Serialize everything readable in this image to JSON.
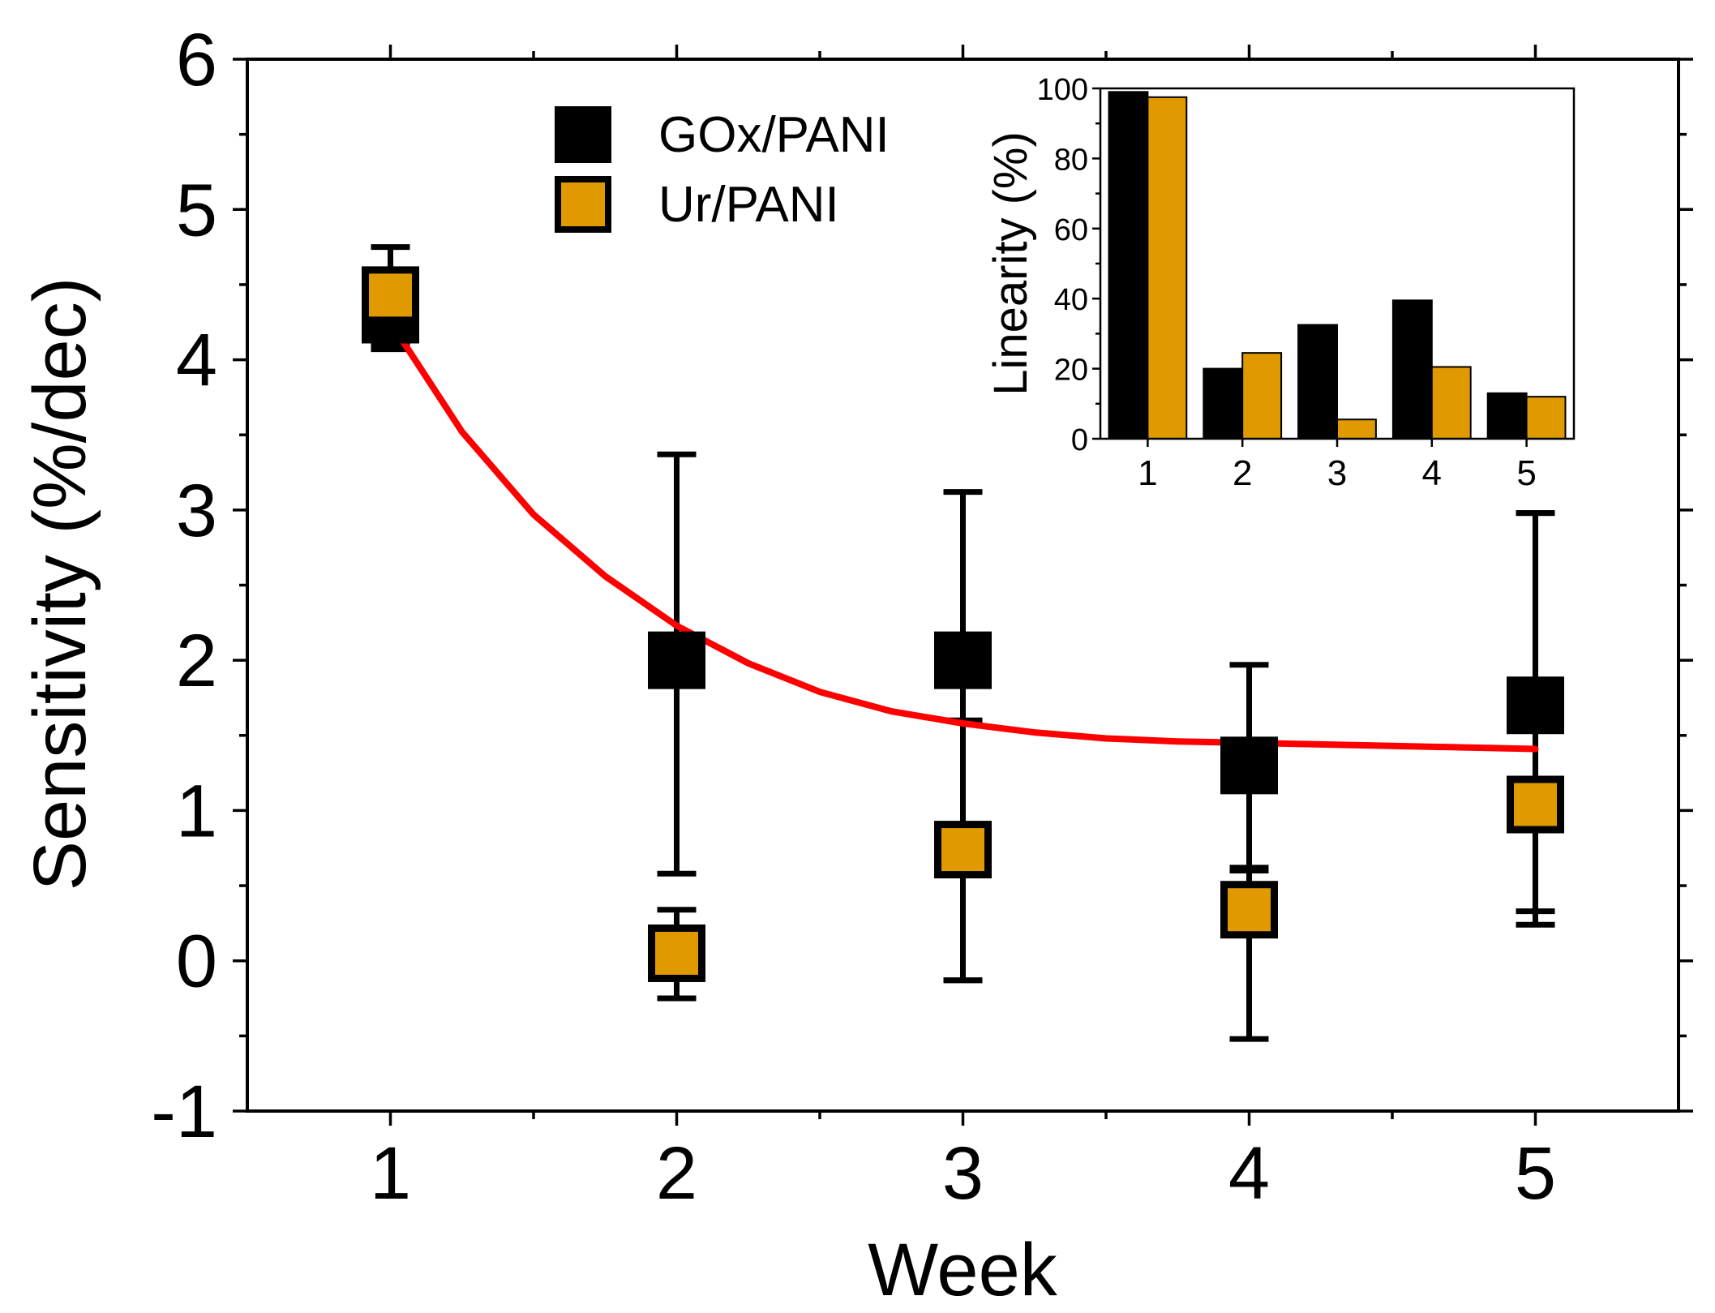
{
  "chart_data": [
    {
      "type": "scatter",
      "title": "",
      "xlabel": "Week",
      "ylabel": "Sensitivity (%/dec)",
      "xlim": [
        0.5,
        5.5
      ],
      "ylim": [
        -1,
        6
      ],
      "x_ticks": [
        "1",
        "2",
        "3",
        "4",
        "5"
      ],
      "y_ticks": [
        "-1",
        "0",
        "1",
        "2",
        "3",
        "4",
        "5",
        "6"
      ],
      "legend_position": "top-center",
      "series": [
        {
          "name": "GOx/PANI",
          "color": "#000000",
          "x": [
            1,
            2,
            3,
            4,
            5
          ],
          "y": [
            4.3,
            2.0,
            2.0,
            1.3,
            1.7
          ],
          "err_low": [
            4.07,
            0.58,
            -0.13,
            0.62,
            0.33
          ],
          "err_high": [
            4.55,
            3.37,
            3.12,
            1.97,
            2.98
          ]
        },
        {
          "name": "Ur/PANI",
          "color": "#E09A00",
          "x": [
            1,
            2,
            3,
            4,
            5
          ],
          "y": [
            4.43,
            0.05,
            0.74,
            0.34,
            1.04
          ],
          "err_low": [
            4.1,
            -0.25,
            -0.13,
            -0.52,
            0.24
          ],
          "err_high": [
            4.75,
            0.34,
            1.6,
            0.6,
            2.98
          ]
        }
      ],
      "fit_curve": {
        "name": "exponential decay fit",
        "color": "#FF0000",
        "x": [
          1,
          1.25,
          1.5,
          1.75,
          2,
          2.25,
          2.5,
          2.75,
          3,
          3.25,
          3.5,
          3.75,
          4,
          4.25,
          4.5,
          4.75,
          5
        ],
        "y": [
          4.25,
          3.52,
          2.97,
          2.56,
          2.23,
          1.98,
          1.79,
          1.66,
          1.58,
          1.52,
          1.48,
          1.46,
          1.45,
          1.44,
          1.43,
          1.42,
          1.41
        ]
      }
    },
    {
      "type": "bar",
      "title": "",
      "xlabel": "",
      "ylabel": "Linearity (%)",
      "ylim": [
        0,
        100
      ],
      "categories": [
        "1",
        "2",
        "3",
        "4",
        "5"
      ],
      "y_ticks": [
        "0",
        "20",
        "40",
        "60",
        "80",
        "100"
      ],
      "series": [
        {
          "name": "GOx/PANI",
          "color": "#000000",
          "values": [
            99,
            20,
            32.5,
            39.5,
            13
          ]
        },
        {
          "name": "Ur/PANI",
          "color": "#E09A00",
          "values": [
            97.5,
            24.5,
            5.5,
            20.5,
            12
          ]
        }
      ]
    }
  ]
}
